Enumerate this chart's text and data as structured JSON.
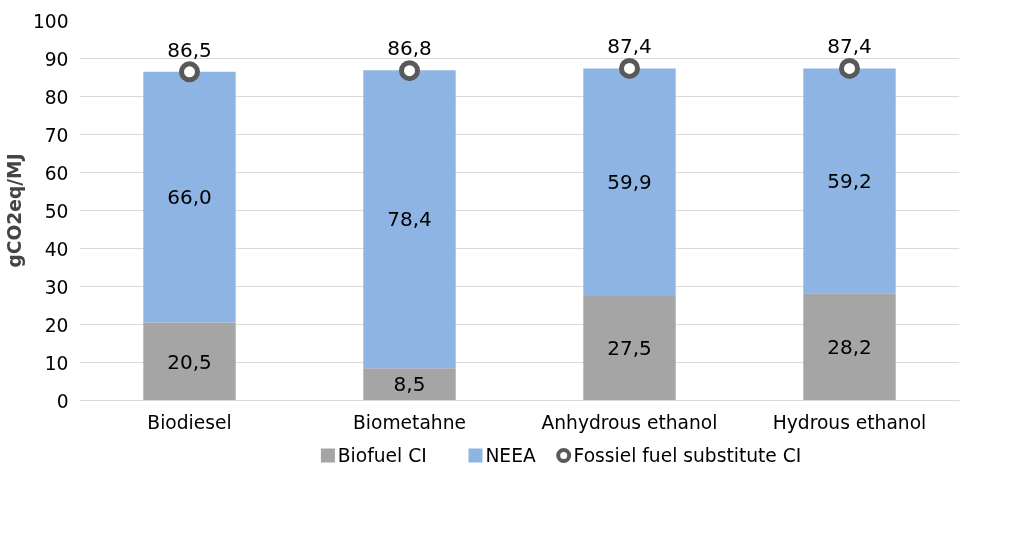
{
  "chart_data": {
    "type": "bar",
    "stacked": true,
    "ylabel": "gCO2eq/MJ",
    "categories": [
      "Biodiesel",
      "Biometahne",
      "Anhydrous ethanol",
      "Hydrous ethanol"
    ],
    "series": [
      {
        "name": "Biofuel CI",
        "color": "#a5a5a5",
        "values": [
          20.5,
          8.5,
          27.5,
          28.2
        ],
        "value_labels": [
          "20,5",
          "8,5",
          "27,5",
          "28,2"
        ]
      },
      {
        "name": "NEEA",
        "color": "#8eb4e3",
        "values": [
          66.0,
          78.4,
          59.9,
          59.2
        ],
        "value_labels": [
          "66,0",
          "78,4",
          "59,9",
          "59,2"
        ]
      },
      {
        "name": "Fossiel fuel substitute CI",
        "type": "scatter",
        "marker": "circle",
        "color": "#595959",
        "x": [
          "Biodiesel",
          "Biometahne",
          "Anhydrous ethanol",
          "Hydrous ethanol"
        ],
        "values": [
          86.5,
          86.8,
          87.4,
          87.4
        ],
        "value_labels": [
          "86,5",
          "86,8",
          "87,4",
          "87,4"
        ]
      }
    ],
    "ylim": [
      0,
      100
    ],
    "yticks": [
      0,
      10,
      20,
      30,
      40,
      50,
      60,
      70,
      80,
      90,
      100
    ],
    "grid": "y",
    "legend": "bottom"
  }
}
